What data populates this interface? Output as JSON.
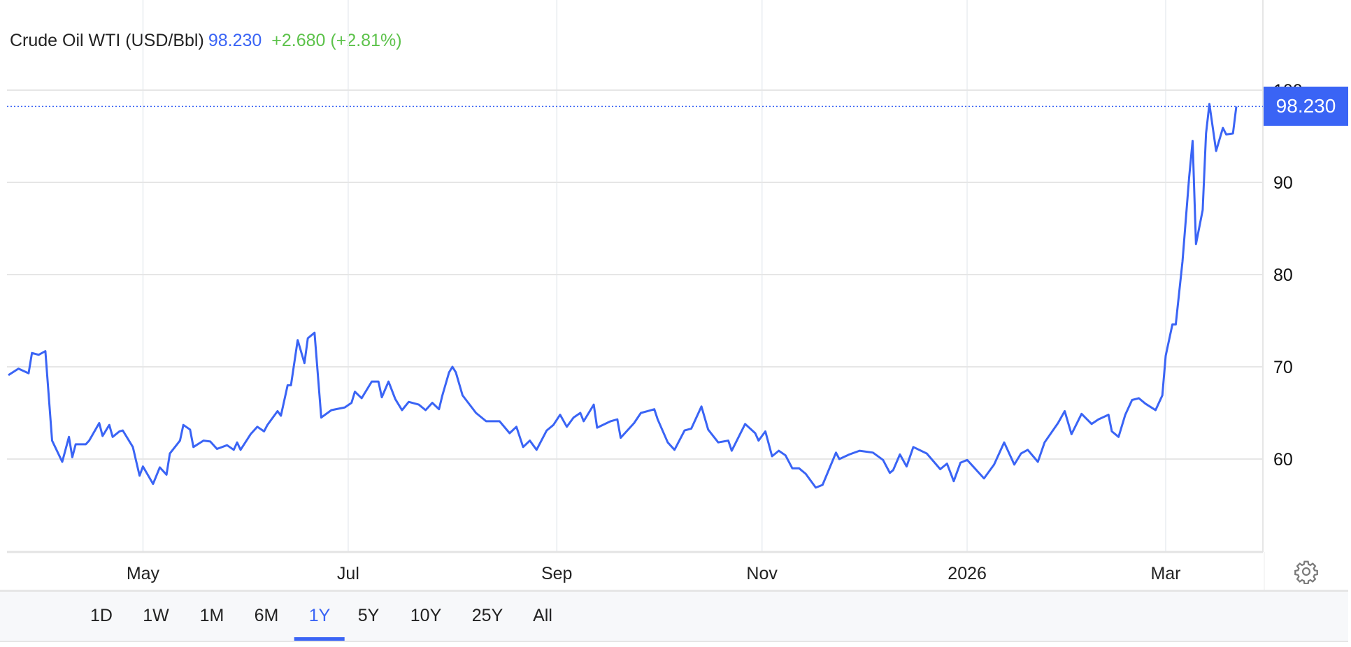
{
  "header": {
    "instrument": "Crude Oil WTI (USD/Bbl)",
    "price": "98.230",
    "change": "+2.680 (+2.81%)"
  },
  "price_tag": "98.230",
  "range_buttons": [
    {
      "label": "1D"
    },
    {
      "label": "1W"
    },
    {
      "label": "1M"
    },
    {
      "label": "6M"
    },
    {
      "label": "1Y",
      "active": true
    },
    {
      "label": "5Y"
    },
    {
      "label": "10Y"
    },
    {
      "label": "25Y"
    },
    {
      "label": "All"
    }
  ],
  "settings_icon": "gear-icon",
  "colors": {
    "line": "#3a64f5",
    "change_positive": "#5cc24a",
    "grid": "#e6e6e6"
  },
  "chart_data": {
    "type": "line",
    "title": "Crude Oil WTI (USD/Bbl)",
    "xlim": [
      "2025-03-22",
      "2026-03-22"
    ],
    "ylim": [
      50,
      103
    ],
    "y_axis_position": "right",
    "y_ticks": [
      60,
      70,
      80,
      90,
      100
    ],
    "x_ticks": [
      {
        "date": "2025-05-01",
        "label": "May"
      },
      {
        "date": "2025-07-01",
        "label": "Jul"
      },
      {
        "date": "2025-09-01",
        "label": "Sep"
      },
      {
        "date": "2025-11-01",
        "label": "Nov"
      },
      {
        "date": "2026-01-01",
        "label": "2026"
      },
      {
        "date": "2026-03-01",
        "label": "Mar"
      }
    ],
    "last_value": 98.23,
    "grid": true,
    "series": [
      {
        "points": [
          [
            "2025-03-22",
            69.1
          ],
          [
            "2025-03-25",
            69.8
          ],
          [
            "2025-03-28",
            69.3
          ],
          [
            "2025-03-29",
            71.5
          ],
          [
            "2025-03-31",
            71.3
          ],
          [
            "2025-04-02",
            71.7
          ],
          [
            "2025-04-04",
            62.0
          ],
          [
            "2025-04-07",
            59.7
          ],
          [
            "2025-04-09",
            62.4
          ],
          [
            "2025-04-10",
            60.2
          ],
          [
            "2025-04-11",
            61.6
          ],
          [
            "2025-04-14",
            61.6
          ],
          [
            "2025-04-15",
            62.0
          ],
          [
            "2025-04-18",
            63.9
          ],
          [
            "2025-04-19",
            62.5
          ],
          [
            "2025-04-21",
            63.7
          ],
          [
            "2025-04-22",
            62.4
          ],
          [
            "2025-04-24",
            63.0
          ],
          [
            "2025-04-25",
            63.1
          ],
          [
            "2025-04-28",
            61.3
          ],
          [
            "2025-04-30",
            58.2
          ],
          [
            "2025-05-01",
            59.2
          ],
          [
            "2025-05-04",
            57.3
          ],
          [
            "2025-05-06",
            59.1
          ],
          [
            "2025-05-08",
            58.3
          ],
          [
            "2025-05-09",
            60.6
          ],
          [
            "2025-05-12",
            62.0
          ],
          [
            "2025-05-13",
            63.7
          ],
          [
            "2025-05-15",
            63.2
          ],
          [
            "2025-05-16",
            61.3
          ],
          [
            "2025-05-19",
            62.0
          ],
          [
            "2025-05-21",
            61.9
          ],
          [
            "2025-05-23",
            61.1
          ],
          [
            "2025-05-26",
            61.5
          ],
          [
            "2025-05-28",
            61.0
          ],
          [
            "2025-05-29",
            61.8
          ],
          [
            "2025-05-30",
            61.0
          ],
          [
            "2025-06-02",
            62.7
          ],
          [
            "2025-06-04",
            63.5
          ],
          [
            "2025-06-06",
            63.0
          ],
          [
            "2025-06-07",
            63.7
          ],
          [
            "2025-06-10",
            65.2
          ],
          [
            "2025-06-11",
            64.7
          ],
          [
            "2025-06-13",
            68.0
          ],
          [
            "2025-06-14",
            68.0
          ],
          [
            "2025-06-16",
            72.9
          ],
          [
            "2025-06-18",
            70.4
          ],
          [
            "2025-06-19",
            73.1
          ],
          [
            "2025-06-21",
            73.7
          ],
          [
            "2025-06-23",
            64.5
          ],
          [
            "2025-06-26",
            65.3
          ],
          [
            "2025-06-30",
            65.6
          ],
          [
            "2025-07-02",
            66.1
          ],
          [
            "2025-07-03",
            67.3
          ],
          [
            "2025-07-05",
            66.6
          ],
          [
            "2025-07-08",
            68.4
          ],
          [
            "2025-07-10",
            68.4
          ],
          [
            "2025-07-11",
            66.7
          ],
          [
            "2025-07-13",
            68.4
          ],
          [
            "2025-07-15",
            66.5
          ],
          [
            "2025-07-17",
            65.3
          ],
          [
            "2025-07-19",
            66.2
          ],
          [
            "2025-07-22",
            65.9
          ],
          [
            "2025-07-24",
            65.3
          ],
          [
            "2025-07-26",
            66.1
          ],
          [
            "2025-07-28",
            65.4
          ],
          [
            "2025-07-29",
            66.9
          ],
          [
            "2025-07-31",
            69.4
          ],
          [
            "2025-08-01",
            70.0
          ],
          [
            "2025-08-02",
            69.4
          ],
          [
            "2025-08-04",
            66.9
          ],
          [
            "2025-08-08",
            65.0
          ],
          [
            "2025-08-11",
            64.1
          ],
          [
            "2025-08-15",
            64.1
          ],
          [
            "2025-08-18",
            62.8
          ],
          [
            "2025-08-20",
            63.5
          ],
          [
            "2025-08-22",
            61.3
          ],
          [
            "2025-08-24",
            62.0
          ],
          [
            "2025-08-26",
            61.0
          ],
          [
            "2025-08-29",
            63.1
          ],
          [
            "2025-08-31",
            63.7
          ],
          [
            "2025-09-02",
            64.8
          ],
          [
            "2025-09-04",
            63.5
          ],
          [
            "2025-09-06",
            64.5
          ],
          [
            "2025-09-08",
            65.0
          ],
          [
            "2025-09-09",
            64.1
          ],
          [
            "2025-09-12",
            65.9
          ],
          [
            "2025-09-13",
            63.4
          ],
          [
            "2025-09-17",
            64.1
          ],
          [
            "2025-09-19",
            64.3
          ],
          [
            "2025-09-20",
            62.3
          ],
          [
            "2025-09-24",
            63.9
          ],
          [
            "2025-09-26",
            65.0
          ],
          [
            "2025-09-28",
            65.2
          ],
          [
            "2025-09-30",
            65.4
          ],
          [
            "2025-10-01",
            64.3
          ],
          [
            "2025-10-04",
            61.8
          ],
          [
            "2025-10-06",
            61.0
          ],
          [
            "2025-10-09",
            63.1
          ],
          [
            "2025-10-11",
            63.3
          ],
          [
            "2025-10-14",
            65.7
          ],
          [
            "2025-10-16",
            63.2
          ],
          [
            "2025-10-19",
            61.8
          ],
          [
            "2025-10-22",
            62.0
          ],
          [
            "2025-10-23",
            60.9
          ],
          [
            "2025-10-27",
            63.8
          ],
          [
            "2025-10-30",
            62.8
          ],
          [
            "2025-10-31",
            62.0
          ],
          [
            "2025-11-02",
            63.0
          ],
          [
            "2025-11-04",
            60.3
          ],
          [
            "2025-11-06",
            60.9
          ],
          [
            "2025-11-08",
            60.4
          ],
          [
            "2025-11-10",
            59.0
          ],
          [
            "2025-11-12",
            59.0
          ],
          [
            "2025-11-14",
            58.4
          ],
          [
            "2025-11-17",
            56.9
          ],
          [
            "2025-11-19",
            57.2
          ],
          [
            "2025-11-23",
            60.7
          ],
          [
            "2025-11-24",
            60.0
          ],
          [
            "2025-11-27",
            60.5
          ],
          [
            "2025-11-30",
            60.9
          ],
          [
            "2025-12-04",
            60.7
          ],
          [
            "2025-12-07",
            59.9
          ],
          [
            "2025-12-09",
            58.5
          ],
          [
            "2025-12-10",
            58.8
          ],
          [
            "2025-12-12",
            60.5
          ],
          [
            "2025-12-14",
            59.2
          ],
          [
            "2025-12-16",
            61.3
          ],
          [
            "2025-12-20",
            60.6
          ],
          [
            "2025-12-24",
            58.9
          ],
          [
            "2025-12-26",
            59.5
          ],
          [
            "2025-12-28",
            57.6
          ],
          [
            "2025-12-30",
            59.6
          ],
          [
            "2026-01-01",
            59.9
          ],
          [
            "2026-01-04",
            58.7
          ],
          [
            "2026-01-06",
            57.9
          ],
          [
            "2026-01-09",
            59.4
          ],
          [
            "2026-01-11",
            61.0
          ],
          [
            "2026-01-12",
            61.8
          ],
          [
            "2026-01-15",
            59.4
          ],
          [
            "2026-01-17",
            60.6
          ],
          [
            "2026-01-19",
            61.0
          ],
          [
            "2026-01-22",
            59.7
          ],
          [
            "2026-01-24",
            61.8
          ],
          [
            "2026-01-28",
            63.9
          ],
          [
            "2026-01-30",
            65.2
          ],
          [
            "2026-02-01",
            62.7
          ],
          [
            "2026-02-04",
            64.9
          ],
          [
            "2026-02-07",
            63.8
          ],
          [
            "2026-02-09",
            64.3
          ],
          [
            "2026-02-12",
            64.8
          ],
          [
            "2026-02-13",
            63.0
          ],
          [
            "2026-02-15",
            62.4
          ],
          [
            "2026-02-17",
            64.8
          ],
          [
            "2026-02-19",
            66.4
          ],
          [
            "2026-02-21",
            66.6
          ],
          [
            "2026-02-23",
            66.0
          ],
          [
            "2026-02-26",
            65.3
          ],
          [
            "2026-02-28",
            66.9
          ],
          [
            "2026-03-01",
            71.2
          ],
          [
            "2026-03-03",
            74.6
          ],
          [
            "2026-03-04",
            74.6
          ],
          [
            "2026-03-06",
            81.4
          ],
          [
            "2026-03-08",
            90.6
          ],
          [
            "2026-03-09",
            94.5
          ],
          [
            "2026-03-10",
            83.3
          ],
          [
            "2026-03-12",
            87.0
          ],
          [
            "2026-03-13",
            95.3
          ],
          [
            "2026-03-14",
            98.5
          ],
          [
            "2026-03-16",
            93.4
          ],
          [
            "2026-03-18",
            95.9
          ],
          [
            "2026-03-19",
            95.2
          ],
          [
            "2026-03-21",
            95.3
          ],
          [
            "2026-03-22",
            98.23
          ]
        ]
      }
    ]
  }
}
